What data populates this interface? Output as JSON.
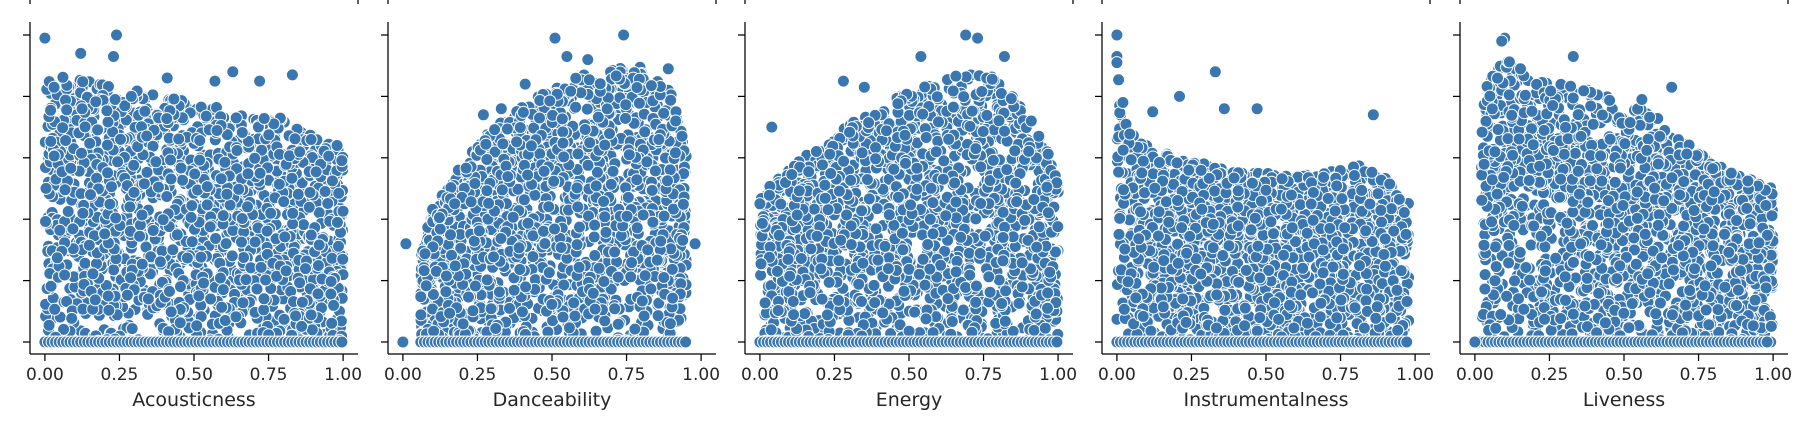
{
  "figure": {
    "marker_color": "#3a76af",
    "marker_edge": "#ffffff",
    "spine_color": "#000000"
  },
  "chart_data": [
    {
      "type": "scatter",
      "xlabel": "Acousticness",
      "ylabel": "",
      "xlim": [
        -0.05,
        1.05
      ],
      "ylim": [
        0,
        1
      ],
      "xticks": [
        "0.00",
        "0.25",
        "0.50",
        "0.75",
        "1.00"
      ],
      "grid": false,
      "envelope": [
        [
          0.0,
          0.86
        ],
        [
          0.1,
          0.87
        ],
        [
          0.2,
          0.84
        ],
        [
          0.3,
          0.82
        ],
        [
          0.4,
          0.8
        ],
        [
          0.5,
          0.78
        ],
        [
          0.6,
          0.76
        ],
        [
          0.7,
          0.73
        ],
        [
          0.8,
          0.73
        ],
        [
          0.9,
          0.68
        ],
        [
          1.0,
          0.62
        ]
      ],
      "density_start": 0.0,
      "outliers": [
        [
          0.0,
          0.99
        ],
        [
          0.24,
          1.0
        ],
        [
          0.12,
          0.94
        ],
        [
          0.23,
          0.93
        ],
        [
          0.63,
          0.88
        ],
        [
          0.83,
          0.87
        ],
        [
          0.41,
          0.86
        ],
        [
          0.72,
          0.85
        ],
        [
          0.57,
          0.85
        ],
        [
          0.98,
          0.64
        ]
      ]
    },
    {
      "type": "scatter",
      "xlabel": "Danceability",
      "ylabel": "",
      "xlim": [
        -0.05,
        1.05
      ],
      "ylim": [
        0,
        1
      ],
      "xticks": [
        "0.00",
        "0.25",
        "0.50",
        "0.75",
        "1.00"
      ],
      "grid": false,
      "envelope": [
        [
          0.06,
          0.28
        ],
        [
          0.1,
          0.44
        ],
        [
          0.2,
          0.58
        ],
        [
          0.3,
          0.7
        ],
        [
          0.4,
          0.77
        ],
        [
          0.5,
          0.83
        ],
        [
          0.6,
          0.87
        ],
        [
          0.7,
          0.9
        ],
        [
          0.8,
          0.9
        ],
        [
          0.9,
          0.82
        ],
        [
          0.95,
          0.62
        ]
      ],
      "density_start": 0.06,
      "outliers": [
        [
          0.0,
          0.0
        ],
        [
          0.01,
          0.32
        ],
        [
          0.51,
          0.99
        ],
        [
          0.74,
          1.0
        ],
        [
          0.55,
          0.93
        ],
        [
          0.62,
          0.92
        ],
        [
          0.27,
          0.74
        ],
        [
          0.33,
          0.76
        ],
        [
          0.41,
          0.84
        ],
        [
          0.98,
          0.32
        ],
        [
          0.89,
          0.89
        ]
      ]
    },
    {
      "type": "scatter",
      "xlabel": "Energy",
      "ylabel": "",
      "xlim": [
        -0.05,
        1.05
      ],
      "ylim": [
        0,
        1
      ],
      "xticks": [
        "0.00",
        "0.25",
        "0.50",
        "0.75",
        "1.00"
      ],
      "grid": false,
      "envelope": [
        [
          0.0,
          0.48
        ],
        [
          0.1,
          0.57
        ],
        [
          0.2,
          0.64
        ],
        [
          0.3,
          0.71
        ],
        [
          0.4,
          0.77
        ],
        [
          0.5,
          0.82
        ],
        [
          0.6,
          0.86
        ],
        [
          0.7,
          0.88
        ],
        [
          0.8,
          0.86
        ],
        [
          0.9,
          0.74
        ],
        [
          1.0,
          0.55
        ]
      ],
      "density_start": 0.0,
      "outliers": [
        [
          0.69,
          1.0
        ],
        [
          0.73,
          0.99
        ],
        [
          0.54,
          0.93
        ],
        [
          0.82,
          0.93
        ],
        [
          0.28,
          0.85
        ],
        [
          0.04,
          0.7
        ],
        [
          0.35,
          0.83
        ],
        [
          0.91,
          0.72
        ],
        [
          0.0,
          0.45
        ]
      ]
    },
    {
      "type": "scatter",
      "xlabel": "Instrumentalness",
      "ylabel": "",
      "xlim": [
        -0.05,
        1.05
      ],
      "ylim": [
        0,
        1
      ],
      "xticks": [
        "0.00",
        "0.25",
        "0.50",
        "0.75",
        "1.00"
      ],
      "grid": false,
      "envelope": [
        [
          0.0,
          0.97
        ],
        [
          0.02,
          0.72
        ],
        [
          0.1,
          0.64
        ],
        [
          0.2,
          0.6
        ],
        [
          0.3,
          0.58
        ],
        [
          0.4,
          0.56
        ],
        [
          0.5,
          0.55
        ],
        [
          0.6,
          0.54
        ],
        [
          0.7,
          0.55
        ],
        [
          0.8,
          0.58
        ],
        [
          0.9,
          0.54
        ],
        [
          0.98,
          0.45
        ]
      ],
      "density_start": 0.0,
      "outliers": [
        [
          0.0,
          1.0
        ],
        [
          0.0,
          0.93
        ],
        [
          0.0,
          0.91
        ],
        [
          0.33,
          0.88
        ],
        [
          0.21,
          0.8
        ],
        [
          0.36,
          0.76
        ],
        [
          0.47,
          0.76
        ],
        [
          0.86,
          0.74
        ],
        [
          0.12,
          0.75
        ],
        [
          0.02,
          0.78
        ]
      ]
    },
    {
      "type": "scatter",
      "xlabel": "Liveness",
      "ylabel": "",
      "xlim": [
        -0.05,
        1.05
      ],
      "ylim": [
        0,
        1
      ],
      "xticks": [
        "0.00",
        "0.25",
        "0.50",
        "0.75",
        "1.00"
      ],
      "grid": false,
      "envelope": [
        [
          0.02,
          0.82
        ],
        [
          0.1,
          0.92
        ],
        [
          0.2,
          0.88
        ],
        [
          0.3,
          0.86
        ],
        [
          0.4,
          0.82
        ],
        [
          0.5,
          0.78
        ],
        [
          0.6,
          0.74
        ],
        [
          0.7,
          0.66
        ],
        [
          0.8,
          0.58
        ],
        [
          0.9,
          0.54
        ],
        [
          1.0,
          0.5
        ]
      ],
      "density_start": 0.02,
      "outliers": [
        [
          0.1,
          0.99
        ],
        [
          0.09,
          0.98
        ],
        [
          0.33,
          0.93
        ],
        [
          0.66,
          0.83
        ],
        [
          0.56,
          0.79
        ],
        [
          0.0,
          0.0
        ],
        [
          0.98,
          0.0
        ],
        [
          0.86,
          0.55
        ]
      ]
    }
  ]
}
